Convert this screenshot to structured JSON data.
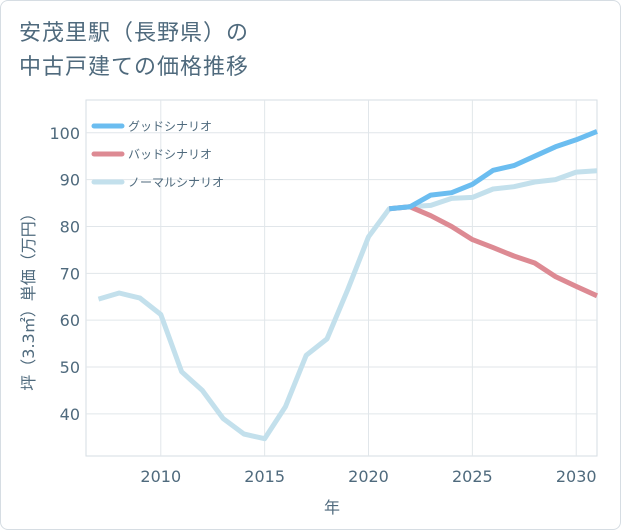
{
  "title": {
    "line1": "安茂里駅（長野県）の",
    "line2": "中古戸建ての価格推移"
  },
  "chart_data": {
    "type": "line",
    "title": "安茂里駅（長野県）の中古戸建ての価格推移",
    "xlabel": "年",
    "ylabel": "坪（3.3㎡）単価（万円）",
    "xlim": [
      2006.4,
      2031
    ],
    "ylim": [
      31,
      107
    ],
    "xticks": [
      2010,
      2015,
      2020,
      2025,
      2030
    ],
    "yticks": [
      40,
      50,
      60,
      70,
      80,
      90,
      100
    ],
    "grid": true,
    "legend_position": "top-left",
    "series": [
      {
        "name": "グッドシナリオ",
        "color": "#6bbdf0",
        "points": [
          [
            2021,
            83.8
          ],
          [
            2022,
            84.2
          ],
          [
            2023,
            86.7
          ],
          [
            2024,
            87.2
          ],
          [
            2025,
            89.0
          ],
          [
            2026,
            92.0
          ],
          [
            2027,
            93.0
          ],
          [
            2028,
            95.0
          ],
          [
            2029,
            97.0
          ],
          [
            2030,
            98.5
          ],
          [
            2031,
            100.3
          ]
        ]
      },
      {
        "name": "バッドシナリオ",
        "color": "#dd8a93",
        "points": [
          [
            2021,
            83.8
          ],
          [
            2022,
            84.2
          ],
          [
            2023,
            82.3
          ],
          [
            2024,
            80.0
          ],
          [
            2025,
            77.2
          ],
          [
            2026,
            75.5
          ],
          [
            2027,
            73.7
          ],
          [
            2028,
            72.2
          ],
          [
            2029,
            69.3
          ],
          [
            2030,
            67.2
          ],
          [
            2031,
            65.2
          ]
        ]
      },
      {
        "name": "ノーマルシナリオ",
        "color": "#c3e0ec",
        "points": [
          [
            2007,
            64.5
          ],
          [
            2008,
            65.8
          ],
          [
            2009,
            64.7
          ],
          [
            2010,
            61.2
          ],
          [
            2011,
            49.0
          ],
          [
            2012,
            45.0
          ],
          [
            2013,
            39.0
          ],
          [
            2014,
            35.7
          ],
          [
            2015,
            34.7
          ],
          [
            2016,
            41.5
          ],
          [
            2017,
            52.5
          ],
          [
            2018,
            56.0
          ],
          [
            2019,
            66.5
          ],
          [
            2020,
            77.8
          ],
          [
            2021,
            83.8
          ],
          [
            2022,
            84.2
          ],
          [
            2023,
            84.5
          ],
          [
            2024,
            86.0
          ],
          [
            2025,
            86.2
          ],
          [
            2026,
            88.0
          ],
          [
            2027,
            88.5
          ],
          [
            2028,
            89.5
          ],
          [
            2029,
            90.0
          ],
          [
            2030,
            91.6
          ],
          [
            2031,
            91.9
          ]
        ]
      }
    ]
  }
}
